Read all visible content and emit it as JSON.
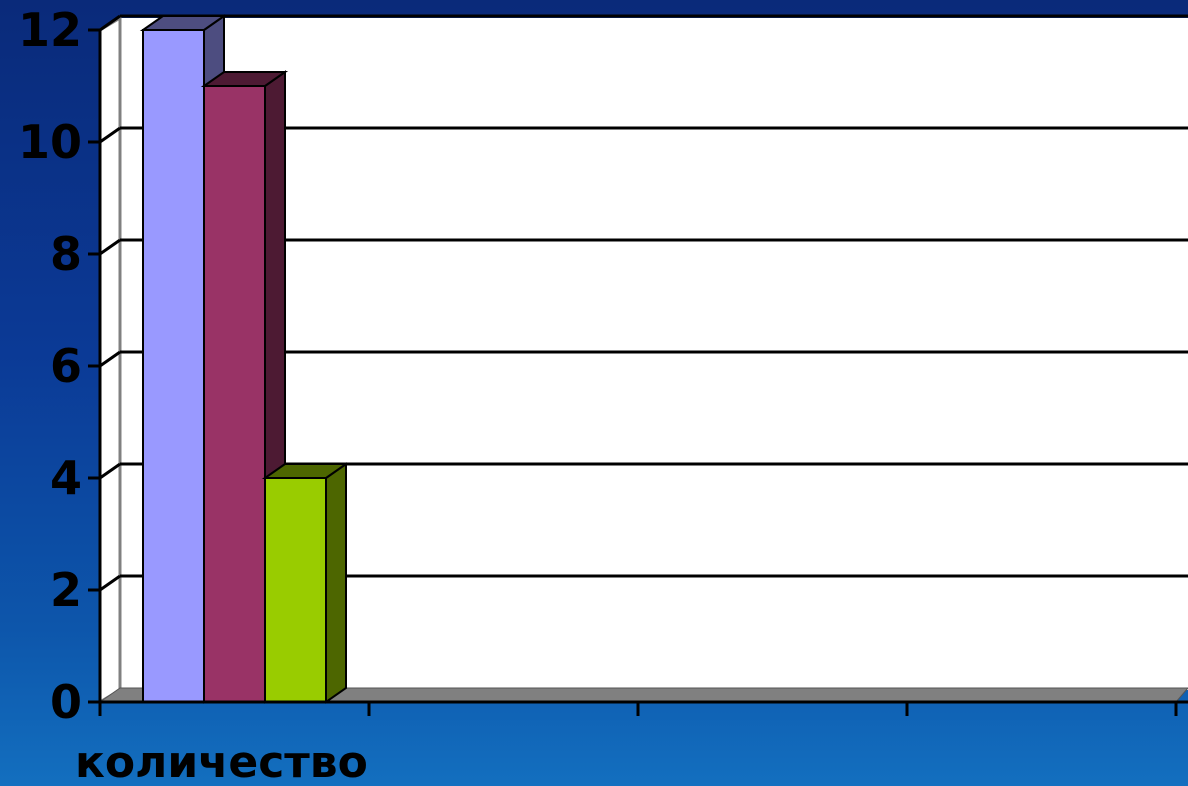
{
  "chart_data": {
    "type": "bar",
    "categories": [
      "количество"
    ],
    "series": [
      {
        "values": [
          12
        ],
        "color": "#9999ff",
        "side_color": "#4d4d80"
      },
      {
        "values": [
          11
        ],
        "color": "#993366",
        "side_color": "#4d1a33"
      },
      {
        "values": [
          4
        ],
        "color": "#99cc00",
        "side_color": "#4d6600"
      }
    ],
    "ylim": [
      0,
      12
    ],
    "yticks": [
      "0",
      "2",
      "4",
      "6",
      "8",
      "10",
      "12"
    ],
    "grid": true,
    "style": "3d-clustered-column",
    "colors": {
      "plot_background": "#ffffff",
      "gridline": "#000000",
      "floor": "#808080",
      "page_background": "#0b3a96"
    }
  }
}
